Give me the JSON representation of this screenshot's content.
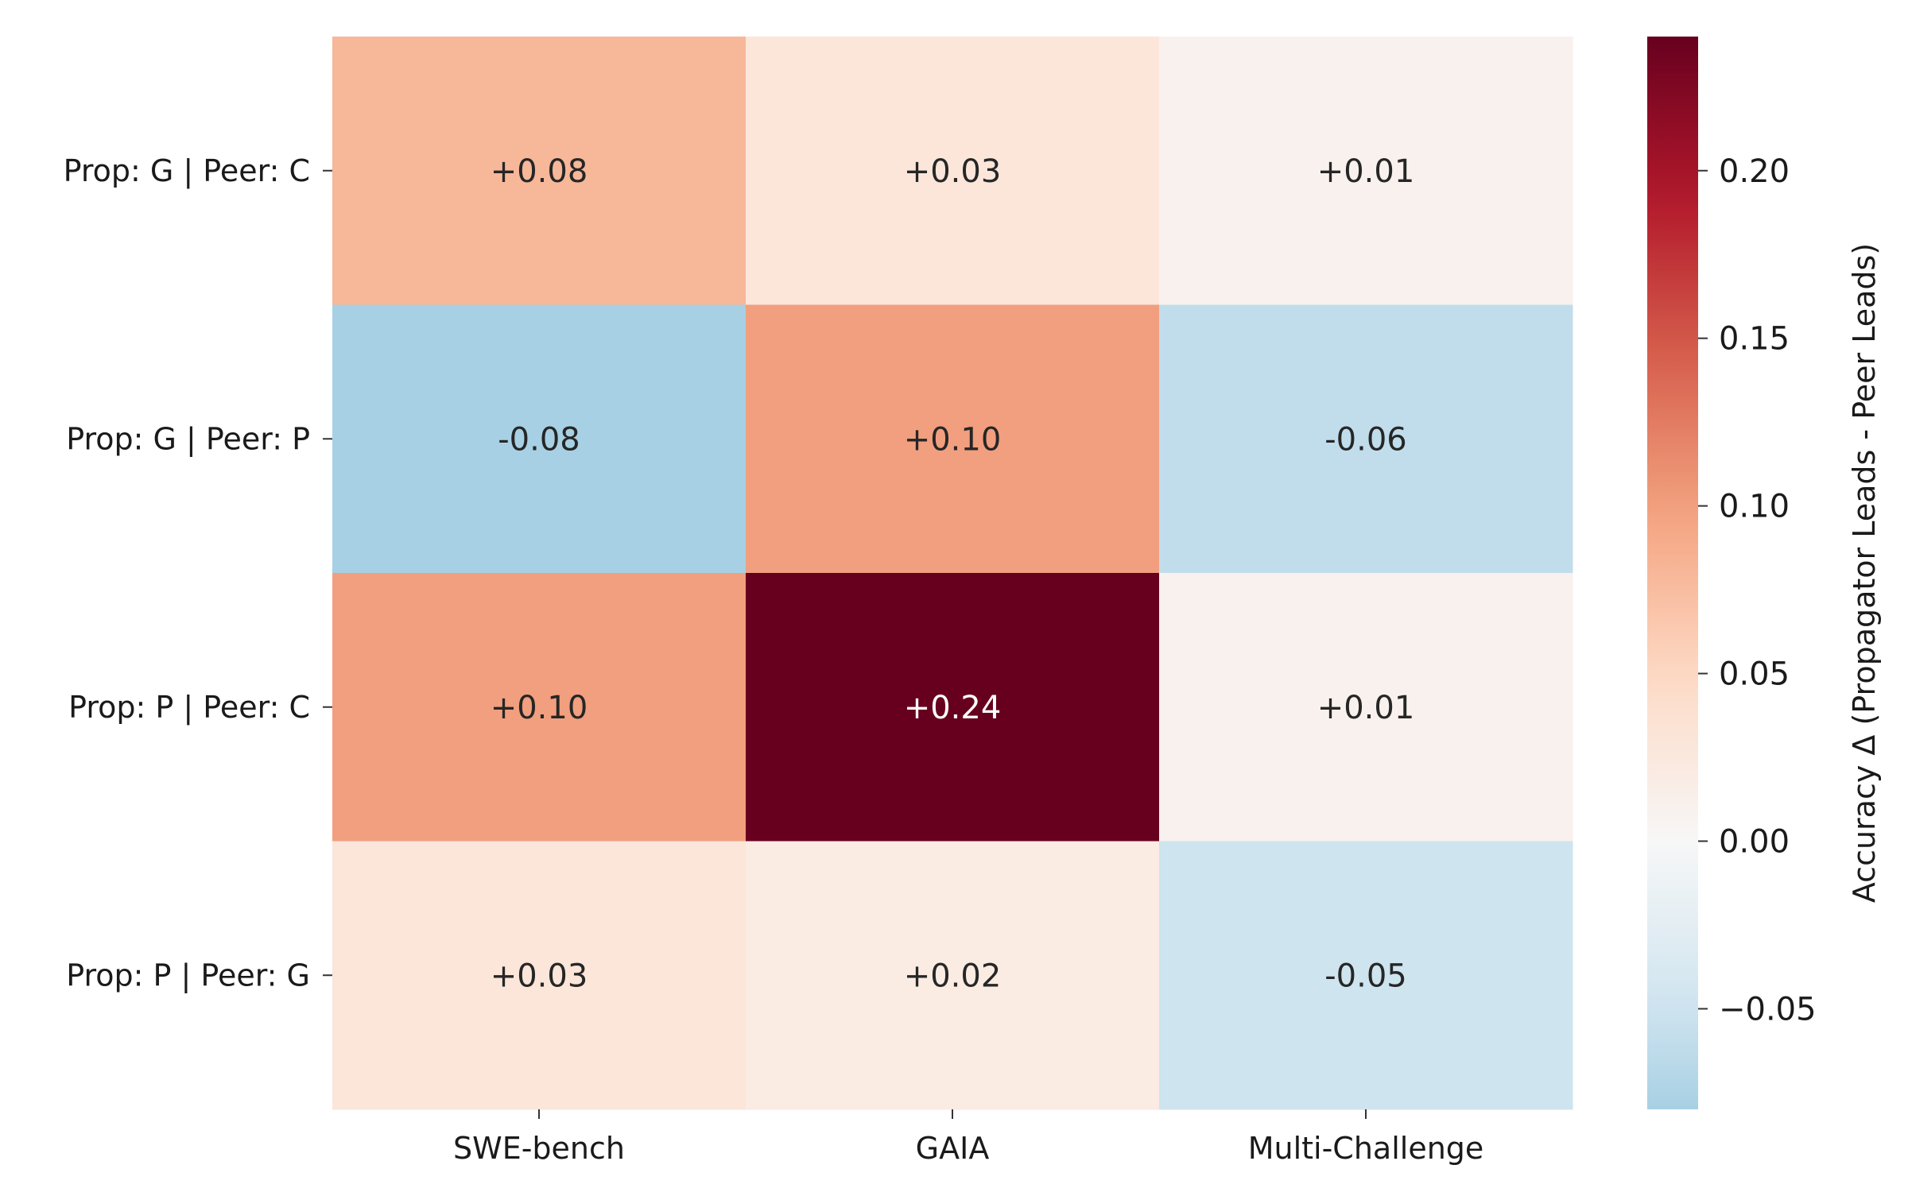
{
  "chart_data": {
    "type": "heatmap",
    "x_categories": [
      "SWE-bench",
      "GAIA",
      "Multi-Challenge"
    ],
    "y_categories": [
      "Prop: G | Peer: C",
      "Prop: G | Peer: P",
      "Prop: P | Peer: C",
      "Prop: P | Peer: G"
    ],
    "values": [
      [
        0.08,
        0.03,
        0.01
      ],
      [
        -0.08,
        0.1,
        -0.06
      ],
      [
        0.1,
        0.24,
        0.01
      ],
      [
        0.03,
        0.02,
        -0.05
      ]
    ],
    "annotations": [
      [
        "+0.08",
        "+0.03",
        "+0.01"
      ],
      [
        "-0.08",
        "+0.10",
        "-0.06"
      ],
      [
        "+0.10",
        "+0.24",
        "+0.01"
      ],
      [
        "+0.03",
        "+0.02",
        "-0.05"
      ]
    ],
    "colorbar": {
      "label": "Accuracy Δ (Propagator Leads - Peer Leads)",
      "range": [
        -0.08,
        0.24
      ],
      "center": 0.0,
      "ticks": [
        -0.05,
        0.0,
        0.05,
        0.1,
        0.15,
        0.2
      ],
      "tick_labels": [
        "−0.05",
        "0.00",
        "0.05",
        "0.10",
        "0.15",
        "0.20"
      ],
      "colormap": "RdBu_r"
    }
  }
}
